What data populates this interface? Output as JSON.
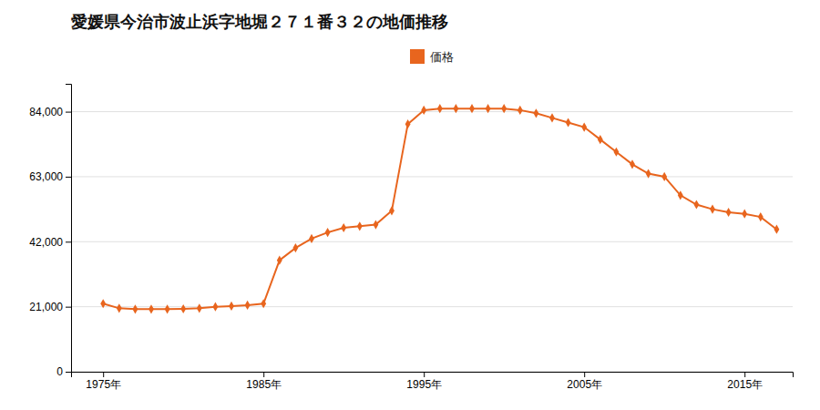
{
  "chart_data": {
    "type": "line",
    "title": "愛媛県今治市波止浜字地堀２７１番３２の地価推移",
    "x": [
      1975,
      1976,
      1977,
      1978,
      1979,
      1980,
      1981,
      1982,
      1983,
      1984,
      1985,
      1986,
      1987,
      1988,
      1989,
      1990,
      1991,
      1992,
      1993,
      1994,
      1995,
      1996,
      1997,
      1998,
      1999,
      2000,
      2001,
      2002,
      2003,
      2004,
      2005,
      2006,
      2007,
      2008,
      2009,
      2010,
      2011,
      2012,
      2013,
      2014,
      2015,
      2016,
      2017
    ],
    "series": [
      {
        "name": "価格",
        "color": "#e8651e",
        "marker": "diamond",
        "values": [
          22000,
          20500,
          20200,
          20200,
          20200,
          20300,
          20500,
          21000,
          21200,
          21500,
          22000,
          36000,
          40000,
          43000,
          45000,
          46500,
          47000,
          47500,
          52000,
          80000,
          84500,
          85000,
          85000,
          85000,
          85000,
          85000,
          84500,
          83500,
          82000,
          80500,
          79000,
          75000,
          71000,
          67000,
          64000,
          63000,
          57000,
          54000,
          52500,
          51500,
          51000,
          50000,
          46000
        ]
      }
    ],
    "xlim": [
      1973,
      2018
    ],
    "xticks": [
      {
        "value": 1975,
        "label": "1975年"
      },
      {
        "value": 1985,
        "label": "1985年"
      },
      {
        "value": 1995,
        "label": "1995年"
      },
      {
        "value": 2005,
        "label": "2005年"
      },
      {
        "value": 2015,
        "label": "2015年"
      }
    ],
    "ylim": [
      0,
      93000
    ],
    "yticks": [
      0,
      {
        "value": 21000,
        "label": "21,000"
      },
      {
        "value": 42000,
        "label": "42,000"
      },
      {
        "value": 63000,
        "label": "63,000"
      },
      {
        "value": 84000,
        "label": "84,000"
      }
    ],
    "grid": true,
    "legend": "top"
  }
}
